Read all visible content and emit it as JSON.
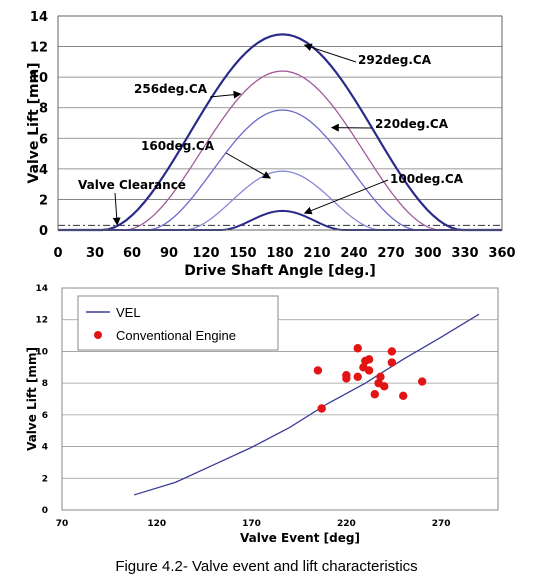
{
  "caption": "Figure 4.2- Valve event and lift characteristics",
  "chart_data": [
    {
      "type": "line",
      "xlabel": "Drive Shaft Angle [deg.]",
      "ylabel": "Valve Lift [mm]",
      "xlim": [
        0,
        360
      ],
      "ylim": [
        0,
        14
      ],
      "xticks": [
        "0",
        "30",
        "60",
        "90",
        "120",
        "150",
        "180",
        "210",
        "240",
        "270",
        "300",
        "330",
        "360"
      ],
      "yticks": [
        "0",
        "2",
        "4",
        "6",
        "8",
        "10",
        "12",
        "14"
      ],
      "grid": "horizontal",
      "valve_clearance": {
        "label": "Valve Clearance",
        "value": 0.3
      },
      "series": [
        {
          "name": "292deg.CA",
          "color": "#2a2a8a",
          "width": 2.2,
          "start": 36,
          "end": 328,
          "peak": 12.8
        },
        {
          "name": "256deg.CA",
          "color": "#a05c9c",
          "width": 1.3,
          "start": 54,
          "end": 310,
          "peak": 10.4
        },
        {
          "name": "220deg.CA",
          "color": "#6a6ac8",
          "width": 1.3,
          "start": 72,
          "end": 292,
          "peak": 7.85
        },
        {
          "name": "160deg.CA",
          "color": "#8888d8",
          "width": 1.3,
          "start": 102,
          "end": 262,
          "peak": 3.85
        },
        {
          "name": "100deg.CA",
          "color": "#2a2a8a",
          "width": 2.0,
          "start": 132,
          "end": 232,
          "peak": 1.25
        }
      ],
      "annotations": [
        {
          "text": "292deg.CA",
          "target": [
            200,
            12.1
          ]
        },
        {
          "text": "256deg.CA",
          "target": [
            148,
            8.9
          ]
        },
        {
          "text": "220deg.CA",
          "target": [
            222,
            6.7
          ]
        },
        {
          "text": "160deg.CA",
          "target": [
            172,
            3.4
          ]
        },
        {
          "text": "100deg.CA",
          "target": [
            200,
            1.1
          ]
        },
        {
          "text": "Valve Clearance",
          "target": [
            48,
            0.35
          ]
        }
      ]
    },
    {
      "type": "scatter",
      "xlabel": "Valve Event [deg]",
      "ylabel": "Valve Lift [mm]",
      "xlim": [
        70,
        300
      ],
      "ylim": [
        0,
        14
      ],
      "xticks": [
        "70",
        "120",
        "170",
        "220",
        "270"
      ],
      "yticks": [
        "0",
        "2",
        "4",
        "6",
        "8",
        "10",
        "12",
        "14"
      ],
      "grid": "horizontal",
      "legend": "top-left",
      "line_series": {
        "name": "VEL",
        "color": "#3c3c96",
        "x": [
          108,
          130,
          150,
          170,
          190,
          210,
          230,
          250,
          270,
          290
        ],
        "y": [
          0.95,
          1.75,
          2.85,
          3.95,
          5.2,
          6.7,
          8.0,
          9.5,
          10.9,
          12.35
        ]
      },
      "point_series": {
        "name": "Conventional Engine",
        "color": "#e31414",
        "points": [
          [
            205,
            8.8
          ],
          [
            207,
            6.4
          ],
          [
            220,
            8.5
          ],
          [
            220,
            8.3
          ],
          [
            226,
            10.2
          ],
          [
            226,
            8.4
          ],
          [
            229,
            9.0
          ],
          [
            230,
            9.4
          ],
          [
            232,
            9.5
          ],
          [
            232,
            8.8
          ],
          [
            235,
            7.3
          ],
          [
            237,
            8.0
          ],
          [
            238,
            8.4
          ],
          [
            240,
            7.8
          ],
          [
            244,
            10.0
          ],
          [
            244,
            9.3
          ],
          [
            250,
            7.2
          ],
          [
            260,
            8.1
          ]
        ]
      }
    }
  ]
}
